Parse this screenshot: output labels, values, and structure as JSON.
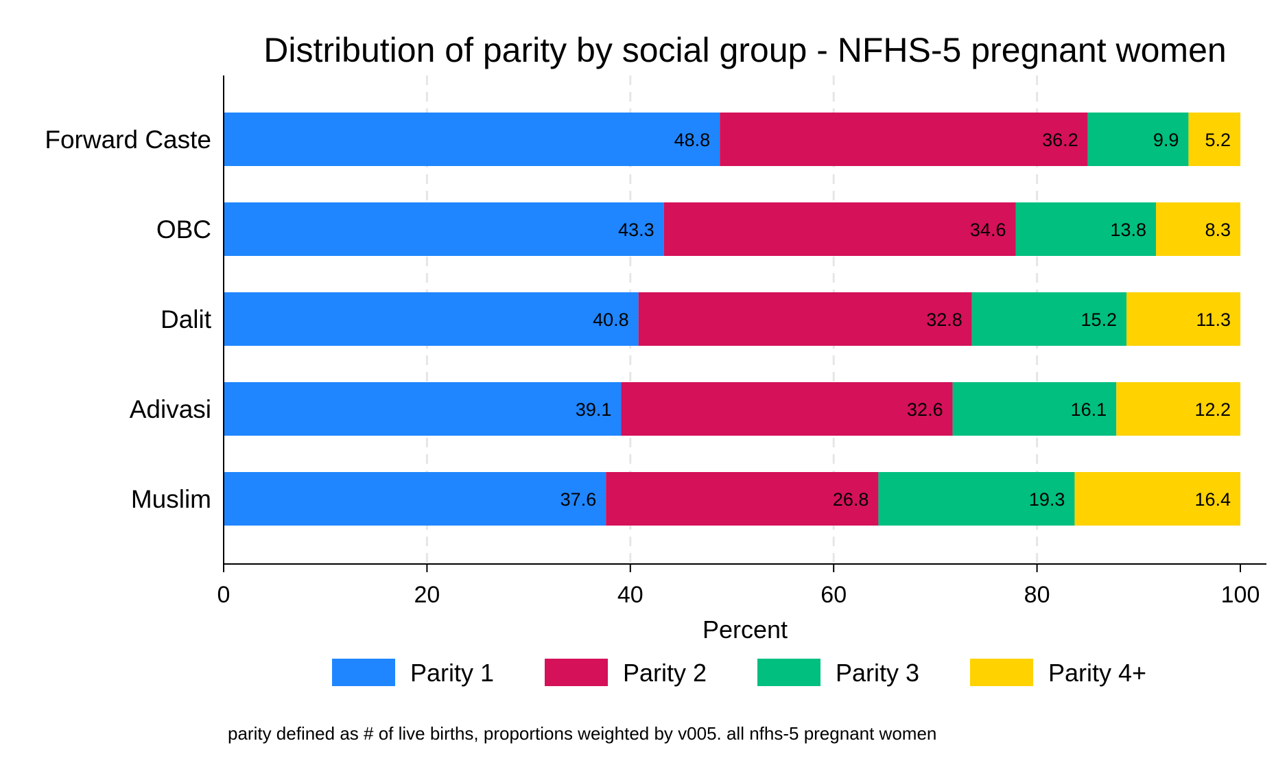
{
  "chart_data": {
    "type": "bar",
    "orientation": "horizontal",
    "stacked": true,
    "title": "Distribution of parity by social group - NFHS-5 pregnant women",
    "xlabel": "Percent",
    "ylabel": "",
    "xlim": [
      0,
      100
    ],
    "xticks": [
      0,
      20,
      40,
      60,
      80,
      100
    ],
    "grid": true,
    "legend_position": "bottom",
    "categories": [
      "Forward Caste",
      "OBC",
      "Dalit",
      "Adivasi",
      "Muslim"
    ],
    "series": [
      {
        "name": "Parity 1",
        "color": "#1f86ff",
        "values": [
          48.8,
          43.3,
          40.8,
          39.1,
          37.6
        ]
      },
      {
        "name": "Parity 2",
        "color": "#d41159",
        "values": [
          36.2,
          34.6,
          32.8,
          32.6,
          26.8
        ]
      },
      {
        "name": "Parity 3",
        "color": "#00bf7f",
        "values": [
          9.9,
          13.8,
          15.2,
          16.1,
          19.3
        ]
      },
      {
        "name": "Parity 4+",
        "color": "#ffd200",
        "values": [
          5.2,
          8.3,
          11.3,
          12.2,
          16.4
        ]
      }
    ],
    "note": "parity defined as # of live births, proportions weighted by v005. all nfhs-5 pregnant women"
  }
}
